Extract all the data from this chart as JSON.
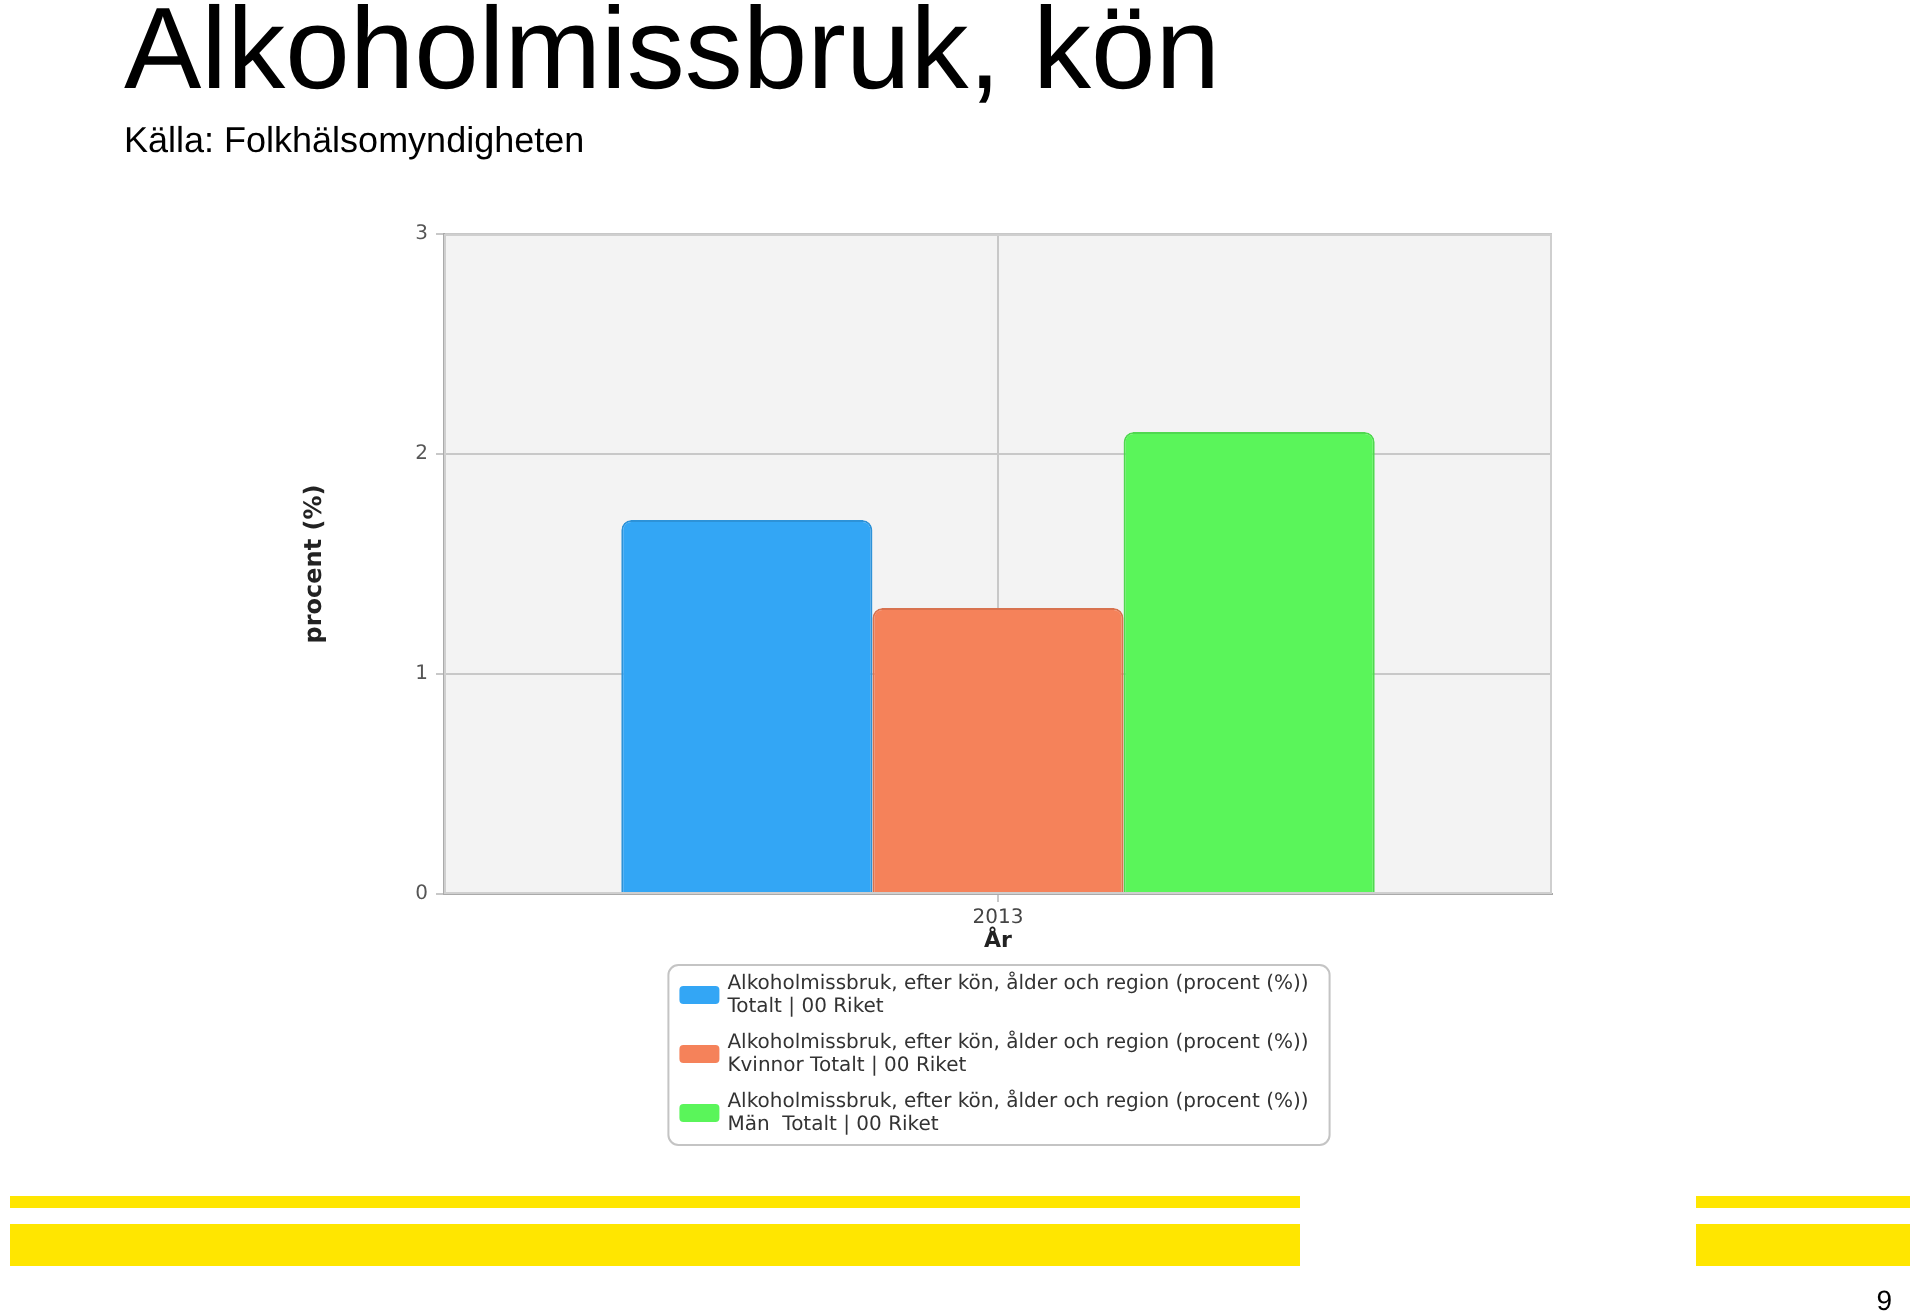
{
  "chart_data": {
    "type": "bar",
    "title": "Alkoholmissbruk, kön",
    "xlabel": "År",
    "ylabel": "procent (%)",
    "categories": [
      "2013"
    ],
    "series": [
      {
        "name": "Alkoholmissbruk, efter kön, ålder och region (procent (%))\nTotalt | 00 Riket",
        "color": "#33a6f5",
        "values": [
          1.7
        ]
      },
      {
        "name": "Alkoholmissbruk, efter kön, ålder och region (procent (%))\nKvinnor Totalt | 00 Riket",
        "color": "#f5825a",
        "values": [
          1.3
        ]
      },
      {
        "name": "Alkoholmissbruk, efter kön, ålder och region (procent (%))\nMän  Totalt | 00 Riket",
        "color": "#5af55a",
        "values": [
          2.1
        ]
      }
    ],
    "ylim": [
      0,
      3
    ],
    "yticks": [
      0,
      1,
      2,
      3
    ],
    "grid": true,
    "legend": "bottom",
    "annotations": [
      "Källa: Folkhälsomyndigheten",
      "9"
    ]
  }
}
